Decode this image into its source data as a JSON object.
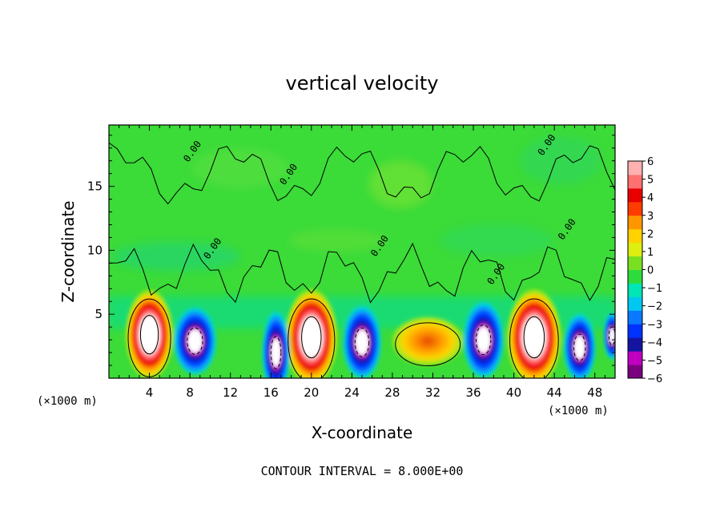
{
  "chart_data": {
    "type": "heatmap",
    "title": "vertical velocity",
    "xlabel": "X-coordinate",
    "ylabel": "Z-coordinate",
    "x_unit": "(×1000 m)",
    "x_unit_right": "(×1000 m)",
    "xlim": [
      0,
      50
    ],
    "ylim": [
      0,
      19.8
    ],
    "xticks": [
      4,
      8,
      12,
      16,
      20,
      24,
      28,
      32,
      36,
      40,
      44,
      48
    ],
    "yticks": [
      5,
      10,
      15
    ],
    "colorbar": {
      "range": [
        -6,
        6
      ],
      "ticks": [
        6,
        5,
        4,
        3,
        2,
        1,
        0,
        -1,
        -2,
        -3,
        -4,
        -5,
        -6
      ],
      "colors": [
        "#7a0080",
        "#c000c0",
        "#1414a0",
        "#0032ff",
        "#0a78ff",
        "#00c8f0",
        "#00e6b4",
        "#2ddc3c",
        "#78e020",
        "#dcef10",
        "#ffd200",
        "#ff9600",
        "#ff3c00",
        "#e80000",
        "#ff7070",
        "#ffb0b0"
      ]
    },
    "features": {
      "updrafts": [
        {
          "x": 4.0,
          "z": 3.4,
          "w": 2.1,
          "h": 2.9
        },
        {
          "x": 20.0,
          "z": 3.2,
          "w": 2.3,
          "h": 3.1
        },
        {
          "x": 42.0,
          "z": 3.2,
          "w": 2.4,
          "h": 3.1
        },
        {
          "x": 31.5,
          "z": 2.9,
          "w": 3.2,
          "h": 1.6
        }
      ],
      "downdrafts": [
        {
          "x": 8.5,
          "z": 2.9,
          "w": 2.0,
          "h": 2.3
        },
        {
          "x": 16.5,
          "z": 2.0,
          "w": 1.3,
          "h": 2.8
        },
        {
          "x": 25.0,
          "z": 2.8,
          "w": 1.8,
          "h": 2.5
        },
        {
          "x": 37.0,
          "z": 3.0,
          "w": 1.9,
          "h": 2.6
        },
        {
          "x": 46.5,
          "z": 2.4,
          "w": 1.5,
          "h": 2.3
        },
        {
          "x": 49.7,
          "z": 3.3,
          "w": 0.8,
          "h": 1.6
        }
      ],
      "zero_contour_labels": [
        {
          "text": "0.00",
          "x": 8.5,
          "z": 17.6
        },
        {
          "text": "0.00",
          "x": 18.0,
          "z": 15.8
        },
        {
          "text": "0.00",
          "x": 10.5,
          "z": 10.0
        },
        {
          "text": "0.00",
          "x": 27.0,
          "z": 10.2
        },
        {
          "text": "0.00",
          "x": 38.5,
          "z": 8.0
        },
        {
          "text": "0.00",
          "x": 43.5,
          "z": 18.1
        },
        {
          "text": "0.00",
          "x": 45.5,
          "z": 11.5
        }
      ]
    },
    "footer": "CONTOUR INTERVAL = 8.000E+00"
  }
}
